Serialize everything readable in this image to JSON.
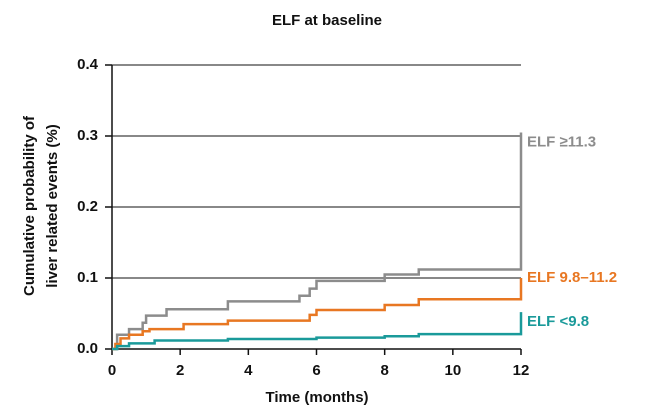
{
  "chart_data": {
    "type": "step",
    "title": "ELF at baseline",
    "xlabel": "Time (months)",
    "ylabel": [
      "Cumulative probability of",
      "liver related events (%)"
    ],
    "xlim": [
      0,
      12
    ],
    "xticks": [
      0,
      2,
      4,
      6,
      8,
      10,
      12
    ],
    "ylim": [
      0,
      0.4
    ],
    "yticks": [
      {
        "value": 0,
        "label": "0.0"
      },
      0.1,
      0.2,
      0.3,
      0.4
    ],
    "grid": true,
    "series": [
      {
        "name": "ELF ≥11.3",
        "color": "#8c8c8c",
        "x": [
          0,
          0.15,
          0.5,
          0.9,
          1.0,
          1.6,
          3.4,
          5.5,
          5.8,
          6.0,
          8.0,
          9.0,
          12,
          12
        ],
        "values": [
          0,
          0.02,
          0.028,
          0.037,
          0.047,
          0.056,
          0.067,
          0.075,
          0.085,
          0.096,
          0.105,
          0.112,
          0.112,
          0.305
        ]
      },
      {
        "name": "ELF 9.8–11.2",
        "color": "#e87722",
        "x": [
          0,
          0.1,
          0.25,
          0.5,
          0.9,
          1.1,
          2.1,
          3.4,
          5.8,
          6.0,
          8.0,
          9.0,
          12,
          12
        ],
        "values": [
          0,
          0.007,
          0.015,
          0.02,
          0.025,
          0.028,
          0.035,
          0.04,
          0.048,
          0.055,
          0.062,
          0.07,
          0.07,
          0.1
        ]
      },
      {
        "name": "ELF <9.8",
        "color": "#1a9a9a",
        "x": [
          0,
          0.15,
          0.5,
          1.25,
          3.4,
          6.0,
          8.0,
          9.0,
          12,
          12
        ],
        "values": [
          0,
          0.004,
          0.008,
          0.012,
          0.014,
          0.016,
          0.018,
          0.021,
          0.021,
          0.052
        ]
      }
    ]
  }
}
